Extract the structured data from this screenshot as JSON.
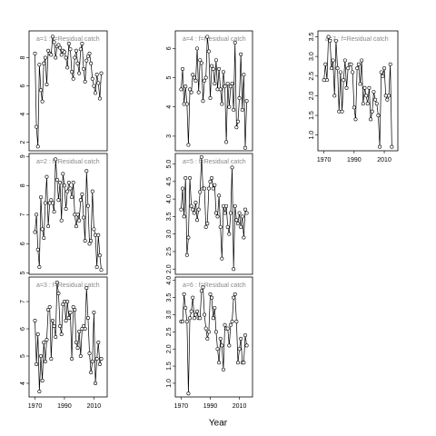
{
  "xlabel": "Year",
  "x": [
    1970,
    1971,
    1972,
    1973,
    1974,
    1975,
    1976,
    1977,
    1978,
    1979,
    1980,
    1981,
    1982,
    1983,
    1984,
    1985,
    1986,
    1987,
    1988,
    1989,
    1990,
    1991,
    1992,
    1993,
    1994,
    1995,
    1996,
    1997,
    1998,
    1999,
    2000,
    2001,
    2002,
    2003,
    2004,
    2005,
    2006,
    2007,
    2008,
    2009,
    2010,
    2011,
    2012,
    2013,
    2014,
    2015
  ],
  "xlim": [
    1966,
    2019
  ],
  "xticks": [
    1970,
    1990,
    2010
  ],
  "chart_data": [
    {
      "type": "line",
      "title": "a=1 : f=Residual catch",
      "color": "#000000",
      "values": [
        8.3,
        3.1,
        1.7,
        7.5,
        5.7,
        4.9,
        7.6,
        8.0,
        6.1,
        8.5,
        8.3,
        8.2,
        9.5,
        9.1,
        8.0,
        8.8,
        8.9,
        8.7,
        8.2,
        8.5,
        8.4,
        8.0,
        7.3,
        9.0,
        8.6,
        7.0,
        6.5,
        8.0,
        8.5,
        7.6,
        6.9,
        8.6,
        9.0,
        7.2,
        6.3,
        7.8,
        8.1,
        8.3,
        7.6,
        6.5,
        6.0,
        5.5,
        6.8,
        6.2,
        5.1,
        6.9
      ],
      "ylim": [
        1.4,
        9.9
      ],
      "yticks": [
        2,
        4,
        6,
        8
      ]
    },
    {
      "type": "line",
      "title": "a=2 : f=Residual catch",
      "color": "#000000",
      "values": [
        6.4,
        7.0,
        5.8,
        5.2,
        7.6,
        6.5,
        6.2,
        7.4,
        8.3,
        6.6,
        7.4,
        7.5,
        7.4,
        7.1,
        8.9,
        8.2,
        7.5,
        8.1,
        6.8,
        8.4,
        8.0,
        7.2,
        7.8,
        8.1,
        7.9,
        7.6,
        8.1,
        7.0,
        6.6,
        7.0,
        6.8,
        7.5,
        7.7,
        6.9,
        6.1,
        8.5,
        7.3,
        6.0,
        6.1,
        7.8,
        6.5,
        6.3,
        5.2,
        6.3,
        5.6,
        5.1
      ],
      "ylim": [
        4.95,
        9.1
      ],
      "yticks": [
        5,
        6,
        7,
        8,
        9
      ]
    },
    {
      "type": "line",
      "title": "a=3 : f=Residual catch",
      "color": "#000000",
      "values": [
        6.3,
        4.7,
        5.8,
        3.7,
        5.0,
        4.1,
        5.5,
        4.8,
        5.6,
        6.7,
        6.8,
        4.9,
        6.3,
        6.1,
        5.7,
        7.7,
        7.3,
        6.1,
        5.8,
        6.9,
        7.0,
        6.3,
        7.0,
        6.4,
        6.6,
        4.9,
        6.8,
        6.7,
        5.5,
        5.3,
        5.9,
        5.0,
        6.0,
        6.1,
        6.0,
        7.5,
        6.4,
        5.1,
        4.4,
        4.8,
        6.6,
        4.0,
        4.9,
        5.5,
        4.7,
        4.9
      ],
      "ylim": [
        3.5,
        7.9
      ],
      "yticks": [
        4,
        5,
        6,
        7
      ]
    },
    {
      "type": "line",
      "title": "a=4 : f=Residual catch",
      "color": "#000000",
      "values": [
        4.6,
        5.3,
        4.1,
        4.7,
        4.1,
        2.7,
        4.6,
        4.5,
        5.1,
        5.0,
        4.9,
        6.0,
        4.5,
        5.6,
        5.5,
        4.2,
        4.9,
        5.0,
        6.4,
        5.9,
        4.3,
        5.4,
        5.3,
        4.8,
        5.6,
        4.6,
        5.3,
        4.6,
        4.1,
        5.2,
        4.7,
        2.8,
        4.8,
        4.0,
        4.7,
        4.8,
        3.9,
        6.2,
        3.3,
        3.5,
        4.3,
        5.8,
        3.9,
        5.1,
        2.6,
        4.2
      ],
      "ylim": [
        2.5,
        6.6
      ],
      "yticks": [
        3,
        4,
        5,
        6
      ]
    },
    {
      "type": "line",
      "title": "a=5 : f=Residual catch",
      "color": "#000000",
      "values": [
        3.7,
        4.3,
        3.5,
        4.6,
        2.4,
        2.9,
        4.6,
        3.8,
        3.7,
        3.6,
        3.9,
        3.4,
        3.7,
        4.2,
        5.2,
        4.3,
        4.3,
        3.2,
        3.3,
        4.3,
        4.5,
        4.6,
        4.3,
        4.4,
        3.6,
        3.5,
        4.1,
        3.2,
        2.3,
        3.8,
        3.6,
        3.8,
        3.2,
        3.0,
        3.6,
        4.9,
        2.0,
        3.8,
        3.4,
        3.3,
        3.6,
        3.2,
        3.5,
        2.9,
        3.7,
        3.6
      ],
      "ylim": [
        1.85,
        5.3
      ],
      "yticks": [
        {
          "value": 2,
          "label": "2.0"
        },
        2.5,
        {
          "value": 3,
          "label": "3.0"
        },
        3.5,
        {
          "value": 4,
          "label": "4.0"
        },
        4.5,
        {
          "value": 5,
          "label": "5.0"
        }
      ]
    },
    {
      "type": "line",
      "title": "a=6 : f=Residual catch",
      "color": "#000000",
      "values": [
        2.8,
        2.8,
        3.6,
        3.2,
        2.8,
        0.7,
        2.9,
        3.1,
        3.5,
        2.9,
        3.0,
        3.1,
        2.9,
        2.9,
        3.7,
        3.8,
        3.0,
        2.6,
        2.3,
        2.5,
        3.6,
        3.5,
        2.9,
        3.2,
        2.5,
        2.0,
        1.6,
        2.3,
        2.1,
        1.4,
        2.7,
        2.6,
        2.6,
        2.1,
        2.7,
        2.8,
        3.5,
        3.6,
        2.8,
        1.6,
        2.0,
        2.3,
        1.6,
        1.6,
        2.4,
        2.1
      ],
      "ylim": [
        0.6,
        4.1
      ],
      "yticks": [
        {
          "value": 1,
          "label": "1.0"
        },
        1.5,
        {
          "value": 2,
          "label": "2.0"
        },
        2.5,
        {
          "value": 3,
          "label": "3.0"
        },
        3.5,
        {
          "value": 4,
          "label": "4.0"
        }
      ]
    },
    {
      "type": "line",
      "title": "a=7 : f=Residual catch",
      "color": "#000000",
      "values": [
        2.4,
        2.8,
        2.4,
        3.5,
        3.4,
        2.7,
        2.9,
        2.0,
        3.4,
        2.7,
        1.6,
        2.6,
        1.6,
        2.4,
        2.9,
        2.2,
        2.7,
        2.8,
        2.8,
        2.6,
        1.7,
        1.4,
        2.7,
        2.8,
        2.3,
        2.9,
        1.8,
        2.2,
        2.0,
        1.8,
        2.2,
        1.4,
        1.6,
        2.1,
        1.9,
        1.8,
        1.5,
        0.7,
        2.6,
        2.5,
        2.7,
        2.0,
        1.9,
        2.0,
        2.8,
        0.7
      ],
      "ylim": [
        0.6,
        3.65
      ],
      "yticks": [
        {
          "value": 1,
          "label": "1.0"
        },
        1.5,
        {
          "value": 2,
          "label": "2.0"
        },
        2.5,
        {
          "value": 3,
          "label": "3.0"
        },
        3.5
      ]
    }
  ]
}
